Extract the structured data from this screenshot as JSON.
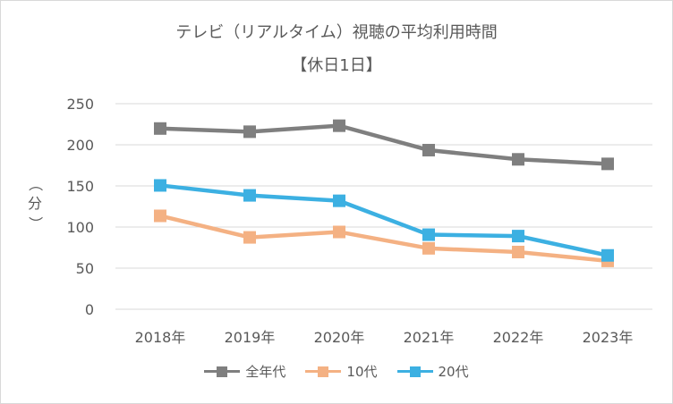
{
  "chart_data": {
    "type": "line",
    "title": "テレビ（リアルタイム）視聴の平均利用時間",
    "subtitle": "【休日1日】",
    "xlabel": "",
    "ylabel": "（分）",
    "ylabel_chars": [
      "（",
      "分",
      "）"
    ],
    "categories": [
      "2018年",
      "2019年",
      "2020年",
      "2021年",
      "2022年",
      "2023年"
    ],
    "ylim": [
      0,
      250
    ],
    "yticks": [
      "0",
      "50",
      "100",
      "150",
      "200",
      "250"
    ],
    "grid": true,
    "legend_position": "bottom",
    "series": [
      {
        "name": "全年代",
        "color": "#7f7f7f",
        "values": [
          219.8,
          215.9,
          223.2,
          193.5,
          182.3,
          176.8
        ]
      },
      {
        "name": "10代",
        "color": "#f4b183",
        "values": [
          113.6,
          87.4,
          94.0,
          74.1,
          69.6,
          58.8
        ]
      },
      {
        "name": "20代",
        "color": "#3cb0e2",
        "values": [
          150.6,
          138.5,
          131.9,
          90.7,
          89.0,
          65.5
        ]
      }
    ]
  }
}
